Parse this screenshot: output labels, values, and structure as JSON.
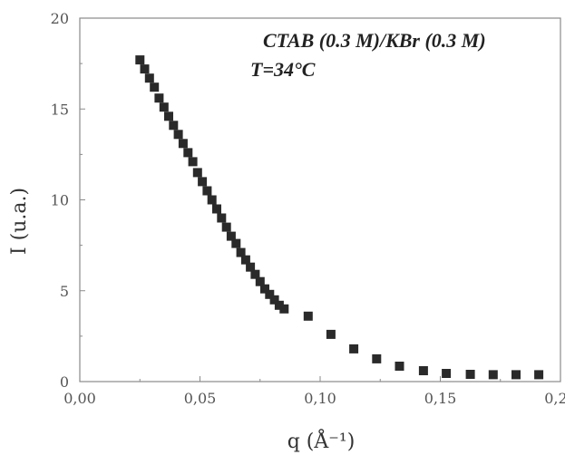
{
  "chart_data": {
    "type": "scatter",
    "xlabel": "q (Å⁻¹)",
    "ylabel": "I (u.a.)",
    "xlim": [
      0.0,
      0.2
    ],
    "ylim": [
      0,
      20
    ],
    "x_ticks": [
      0.0,
      0.05,
      0.1,
      0.15,
      0.2
    ],
    "x_tick_labels": [
      "0,00",
      "0,05",
      "0,10",
      "0,15",
      "0,20"
    ],
    "y_ticks": [
      0,
      5,
      10,
      15,
      20
    ],
    "y_tick_labels": [
      "0",
      "5",
      "10",
      "15",
      "20"
    ],
    "annotations": [
      "CTAB (0.3 M)/KBr (0.3 M)",
      "T=34°C"
    ],
    "grid": false,
    "marker": "square",
    "color": "#2a2a2a",
    "series": [
      {
        "x": [
          0.025,
          0.027,
          0.029,
          0.031,
          0.033,
          0.035,
          0.037,
          0.039,
          0.041,
          0.043,
          0.045,
          0.047,
          0.049,
          0.051,
          0.053,
          0.055,
          0.057,
          0.059,
          0.061,
          0.063,
          0.065,
          0.067,
          0.069,
          0.071,
          0.073,
          0.075,
          0.077,
          0.079,
          0.081,
          0.083,
          0.085,
          0.095,
          0.1045,
          0.114,
          0.1235,
          0.133,
          0.143,
          0.1525,
          0.1625,
          0.172,
          0.1815,
          0.191
        ],
        "y": [
          17.7,
          17.2,
          16.7,
          16.2,
          15.6,
          15.1,
          14.6,
          14.1,
          13.6,
          13.1,
          12.6,
          12.1,
          11.5,
          11.0,
          10.5,
          10.0,
          9.5,
          9.0,
          8.5,
          8.0,
          7.6,
          7.1,
          6.7,
          6.3,
          5.9,
          5.5,
          5.1,
          4.8,
          4.5,
          4.2,
          4.0,
          3.6,
          2.6,
          1.8,
          1.25,
          0.85,
          0.6,
          0.45,
          0.4,
          0.38,
          0.38,
          0.38
        ]
      }
    ]
  }
}
